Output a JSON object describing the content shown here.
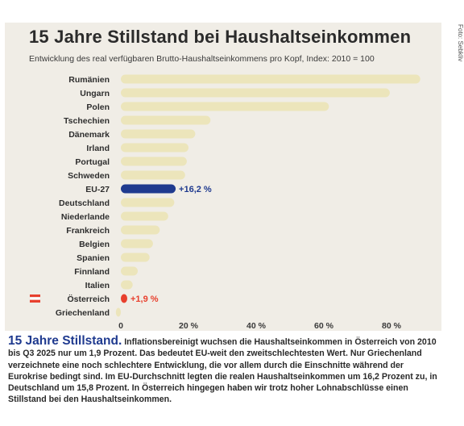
{
  "chart_data": {
    "type": "bar",
    "orientation": "horizontal",
    "title": "15 Jahre Stillstand bei Haushaltseinkommen",
    "subtitle": "Entwicklung des real verfügbaren Brutto-Haushaltseinkommens pro Kopf, Index: 2010 = 100",
    "categories": [
      "Rumänien",
      "Ungarn",
      "Polen",
      "Tschechien",
      "Dänemark",
      "Irland",
      "Portugal",
      "Schweden",
      "EU-27",
      "Deutschland",
      "Niederlande",
      "Frankreich",
      "Belgien",
      "Spanien",
      "Finnland",
      "Italien",
      "Österreich",
      "Griechenland"
    ],
    "values": [
      88.5,
      79.5,
      61.5,
      26.5,
      22,
      20,
      19.5,
      19,
      16.2,
      15.8,
      14,
      11.5,
      9.5,
      8.5,
      5,
      3.5,
      1.9,
      -1
    ],
    "xlim": [
      0,
      90
    ],
    "xticks": [
      0,
      20,
      40,
      60,
      80
    ],
    "xtick_labels": [
      "0",
      "20 %",
      "40 %",
      "60 %",
      "80 %"
    ],
    "data_labels": [
      {
        "category": "EU-27",
        "text": "+16,2 %"
      },
      {
        "category": "Österreich",
        "text": "+1,9 %"
      }
    ],
    "colors": {
      "default": "#ece5bb",
      "EU-27": "#1f3a8f",
      "Österreich": "#e8402e",
      "austria_flag_red": "#e8402e",
      "austria_flag_white": "#ffffff"
    },
    "grid": false,
    "legend": "none"
  },
  "credit": "Foto: Sebkliv",
  "caption": {
    "lead": "15 Jahre Stillstand.",
    "body": "Inflationsbereinigt wuchsen die Haushaltseinkommen in Österreich von 2010 bis Q3 2025 nur um 1,9 Prozent. Das bedeutet EU-weit den zweitschlechtesten Wert. Nur Griechenland verzeichnete eine noch schlechtere Entwicklung, die vor allem durch die Einschnitte während der Eurokrise bedingt sind. Im EU-Durchschnitt legten die realen Haushaltseinkommen um 16,2 Prozent zu, in Deutschland um 15,8 Prozent. In Österreich hingegen haben wir trotz hoher Lohnabschlüsse einen Stillstand bei den Haushaltseinkommen."
  }
}
